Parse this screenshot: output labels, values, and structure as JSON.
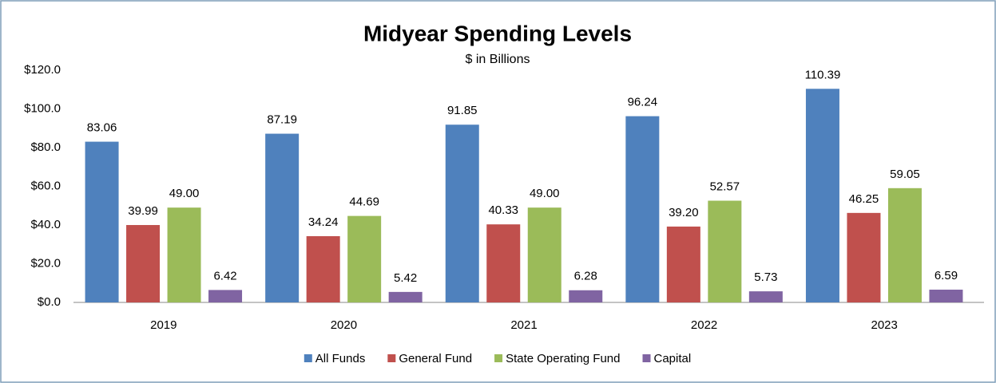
{
  "chart_data": {
    "type": "bar",
    "title": "Midyear Spending Levels",
    "subtitle": "$ in Billions",
    "categories": [
      "2019",
      "2020",
      "2021",
      "2022",
      "2023"
    ],
    "series": [
      {
        "name": "All Funds",
        "color": "#4f81bd",
        "values": [
          83.06,
          87.19,
          91.85,
          96.24,
          110.39
        ],
        "value_labels": [
          "83.06",
          "87.19",
          "91.85",
          "96.24",
          "110.39"
        ]
      },
      {
        "name": "General Fund",
        "color": "#c0504d",
        "values": [
          39.99,
          34.24,
          40.33,
          39.2,
          46.25
        ],
        "value_labels": [
          "39.99",
          "34.24",
          "40.33",
          "39.20",
          "46.25"
        ]
      },
      {
        "name": "State Operating Fund",
        "color": "#9bbb59",
        "values": [
          49,
          44.69,
          49,
          52.57,
          59.05
        ],
        "value_labels": [
          "49.00",
          "44.69",
          "49.00",
          "52.57",
          "59.05"
        ]
      },
      {
        "name": "Capital",
        "color": "#8064a2",
        "values": [
          6.42,
          5.42,
          6.28,
          5.73,
          6.59
        ],
        "value_labels": [
          "6.42",
          "5.42",
          "6.28",
          "5.73",
          "6.59"
        ]
      }
    ],
    "ylim": [
      0,
      120
    ],
    "yticks": [
      {
        "value": 0,
        "label": "$0.0"
      },
      {
        "value": 20,
        "label": "$20.0"
      },
      {
        "value": 40,
        "label": "$40.0"
      },
      {
        "value": 60,
        "label": "$60.0"
      },
      {
        "value": 80,
        "label": "$80.0"
      },
      {
        "value": 100,
        "label": "$100.0"
      },
      {
        "value": 120,
        "label": "$120.0"
      }
    ],
    "grid": false,
    "legend": "bottom"
  }
}
